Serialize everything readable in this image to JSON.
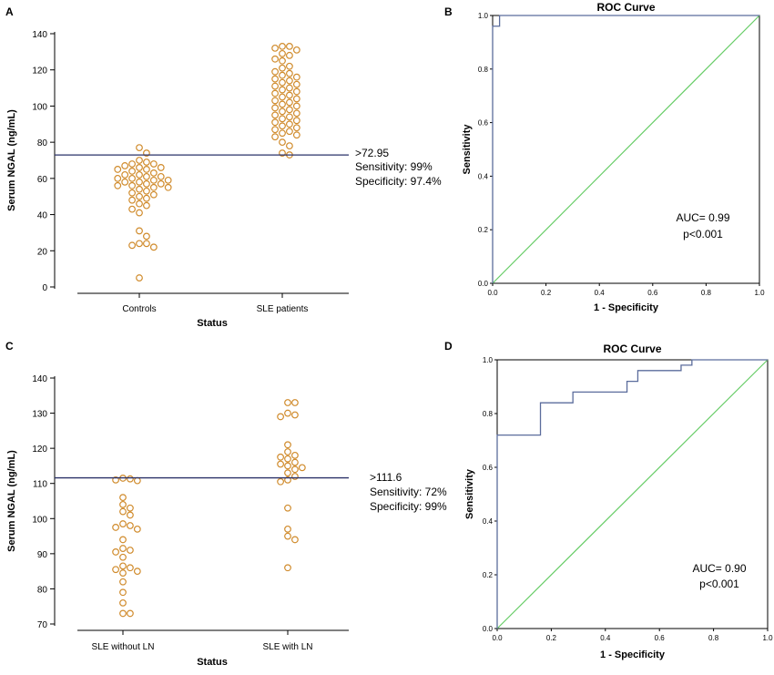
{
  "panels": {
    "a": "A",
    "b": "B",
    "c": "C",
    "d": "D"
  },
  "chart_data": [
    {
      "id": "A",
      "type": "scatter",
      "title": "",
      "xlabel": "Status",
      "ylabel": "Serum NGAL (ng/mL)",
      "categories": [
        "Controls",
        "SLE patients"
      ],
      "ylim": [
        0,
        140
      ],
      "yticks": [
        0,
        20,
        40,
        60,
        80,
        100,
        120,
        140
      ],
      "cutoff": 72.95,
      "annotations": [
        ">72.95",
        "Sensitivity: 99%",
        "Specificity: 97.4%"
      ],
      "series": [
        {
          "category": "Controls",
          "values": [
            77,
            74,
            70,
            69,
            68,
            68,
            67,
            66,
            66,
            65,
            65,
            64,
            63,
            62,
            62,
            61,
            61,
            60,
            60,
            59,
            59,
            58,
            58,
            57,
            57,
            56,
            56,
            55,
            55,
            54,
            53,
            52,
            51,
            50,
            49,
            48,
            46,
            45,
            43,
            41,
            31,
            28,
            24,
            24,
            23,
            22,
            5
          ]
        },
        {
          "category": "SLE patients",
          "values": [
            133,
            133,
            132,
            131,
            129,
            128,
            126,
            125,
            122,
            121,
            119,
            118,
            117,
            116,
            115,
            114,
            113,
            112,
            111,
            110,
            109,
            108,
            107,
            106,
            105,
            104,
            103,
            102,
            101,
            100,
            99,
            98,
            97,
            96,
            95,
            94,
            93,
            92,
            91,
            90,
            89,
            88,
            87,
            86,
            85,
            84,
            83,
            80,
            78,
            74,
            73
          ]
        }
      ]
    },
    {
      "id": "B",
      "type": "line",
      "title": "ROC Curve",
      "xlabel": "1 - Specificity",
      "ylabel": "Sensitivity",
      "xlim": [
        0,
        1
      ],
      "ylim": [
        0,
        1
      ],
      "xticks": [
        "0.0",
        "0.2",
        "0.4",
        "0.6",
        "0.8",
        "1.0"
      ],
      "yticks": [
        "0.0",
        "0.2",
        "0.4",
        "0.6",
        "0.8",
        "1.0"
      ],
      "series": [
        {
          "color": "#5b6c9c",
          "x": [
            0,
            0,
            0.026,
            0.026,
            1
          ],
          "y": [
            0,
            0.96,
            0.96,
            1,
            1
          ]
        },
        {
          "color": "#66cc66",
          "x": [
            0,
            1
          ],
          "y": [
            0,
            1
          ]
        }
      ],
      "annotations": [
        "AUC= 0.99",
        "p<0.001"
      ]
    },
    {
      "id": "C",
      "type": "scatter",
      "title": "",
      "xlabel": "Status",
      "ylabel": "Serum NGAL (ng/mL)",
      "categories": [
        "SLE without LN",
        "SLE with LN"
      ],
      "ylim": [
        70,
        140
      ],
      "yticks": [
        70,
        80,
        90,
        100,
        110,
        120,
        130,
        140
      ],
      "cutoff": 111.6,
      "annotations": [
        ">111.6",
        "Sensitivity: 72%",
        "Specificity: 99%"
      ],
      "series": [
        {
          "category": "SLE without LN",
          "values": [
            111.5,
            111.3,
            111,
            110.8,
            106,
            104,
            103,
            102,
            101,
            98.5,
            98,
            97.5,
            97,
            94,
            91.5,
            91,
            90.5,
            89,
            86.5,
            86,
            85.5,
            85,
            84.5,
            82,
            79,
            76,
            73,
            73
          ]
        },
        {
          "category": "SLE with LN",
          "values": [
            133,
            133,
            130,
            129.5,
            129,
            121,
            119,
            118,
            117.5,
            117,
            116,
            115.5,
            115,
            114.5,
            114,
            113,
            112,
            111,
            110.5,
            103,
            97,
            95,
            94,
            86
          ]
        }
      ]
    },
    {
      "id": "D",
      "type": "line",
      "title": "ROC Curve",
      "xlabel": "1 - Specificity",
      "ylabel": "Sensitivity",
      "xlim": [
        0,
        1
      ],
      "ylim": [
        0,
        1
      ],
      "xticks": [
        "0.0",
        "0.2",
        "0.4",
        "0.6",
        "0.8",
        "1.0"
      ],
      "yticks": [
        "0.0",
        "0.2",
        "0.4",
        "0.6",
        "0.8",
        "1.0"
      ],
      "series": [
        {
          "color": "#5b6c9c",
          "x": [
            0,
            0,
            0.16,
            0.16,
            0.28,
            0.28,
            0.48,
            0.48,
            0.52,
            0.52,
            0.68,
            0.68,
            0.72,
            0.72,
            1
          ],
          "y": [
            0,
            0.72,
            0.72,
            0.84,
            0.84,
            0.88,
            0.88,
            0.92,
            0.92,
            0.96,
            0.96,
            0.98,
            0.98,
            1,
            1
          ]
        },
        {
          "color": "#66cc66",
          "x": [
            0,
            1
          ],
          "y": [
            0,
            1
          ]
        }
      ],
      "annotations": [
        "AUC= 0.90",
        "p<0.001"
      ]
    }
  ],
  "colors": {
    "dot": "#d08b2c",
    "cutoff": "#2a3168",
    "roc": "#5b6c9c",
    "diagonal": "#66cc66",
    "frame": "#000000"
  }
}
